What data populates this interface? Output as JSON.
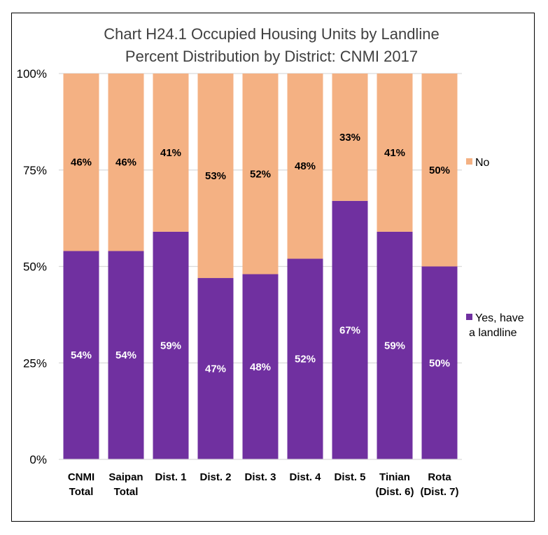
{
  "chart_data": {
    "type": "bar",
    "stacked": true,
    "title_lines": [
      "Chart H24.1 Occupied Housing Units by Landline",
      "Percent Distribution by District: CNMI 2017"
    ],
    "categories": [
      [
        "CNMI",
        "Total"
      ],
      [
        "Saipan",
        "Total"
      ],
      [
        "Dist. 1"
      ],
      [
        "Dist. 2"
      ],
      [
        "Dist. 3"
      ],
      [
        "Dist. 4"
      ],
      [
        "Dist. 5"
      ],
      [
        "Tinian",
        "(Dist. 6)"
      ],
      [
        "Rota",
        "(Dist. 7)"
      ]
    ],
    "series": [
      {
        "name_lines": [
          "Yes, have",
          "a landline"
        ],
        "color": "#7030a0",
        "label_color": "#ffffff",
        "values": [
          54,
          54,
          59,
          47,
          48,
          52,
          67,
          59,
          50
        ],
        "labels": [
          "54%",
          "54%",
          "59%",
          "47%",
          "48%",
          "52%",
          "67%",
          "59%",
          "50%"
        ]
      },
      {
        "name_lines": [
          "No"
        ],
        "color": "#f4b183",
        "label_color": "#000000",
        "values": [
          46,
          46,
          41,
          53,
          52,
          48,
          33,
          41,
          50
        ],
        "labels": [
          "46%",
          "46%",
          "41%",
          "53%",
          "52%",
          "48%",
          "33%",
          "41%",
          "50%"
        ]
      }
    ],
    "ylim": [
      0,
      100
    ],
    "yticks": [
      0,
      25,
      50,
      75,
      100
    ],
    "ytick_labels": [
      "0%",
      "25%",
      "50%",
      "75%",
      "100%"
    ],
    "grid": true,
    "legend_position": "right"
  }
}
